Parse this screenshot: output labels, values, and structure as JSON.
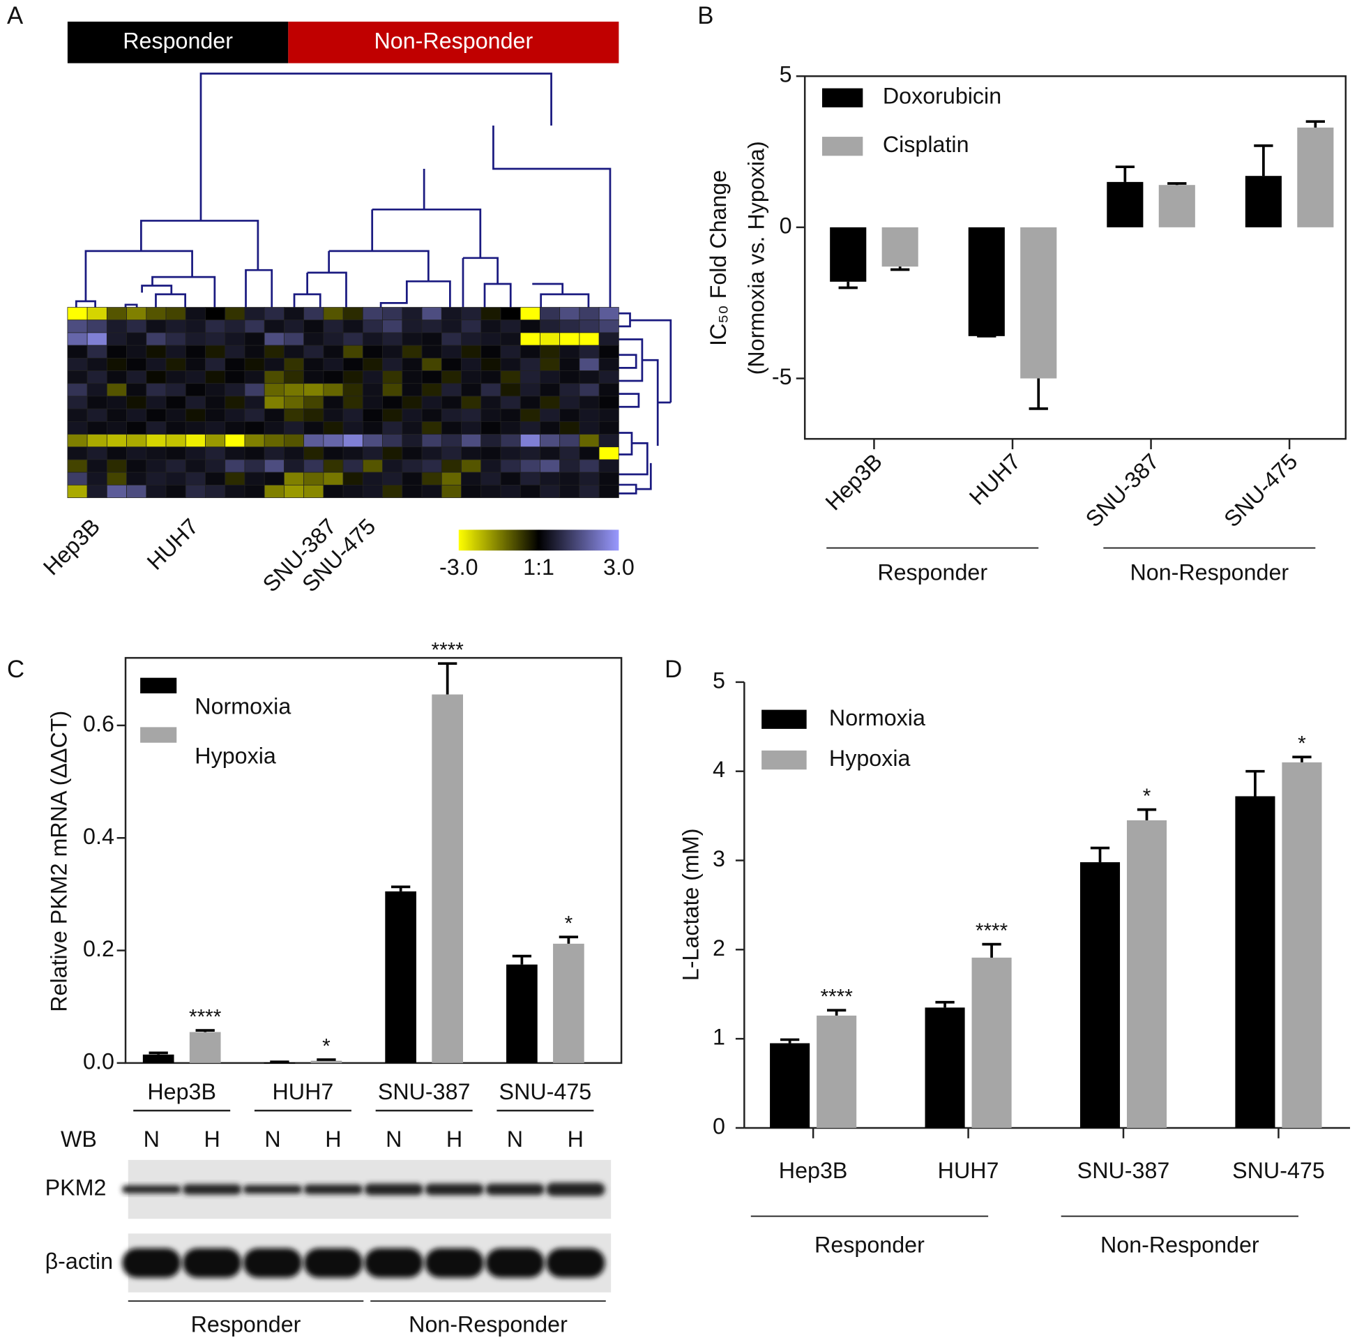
{
  "chart_data": [
    {
      "type": "heatmap",
      "panel": "A",
      "groups": [
        "Responder",
        "Non-Responder"
      ],
      "group_colors": [
        "#000000",
        "#c00000"
      ],
      "categories": [
        null,
        "Hep3B",
        null,
        null,
        null,
        null,
        "HUH7",
        null,
        null,
        null,
        null,
        null,
        null,
        "SNU-387",
        null,
        "SNU-475",
        null,
        null,
        null,
        null,
        null,
        null,
        null,
        null,
        null,
        null,
        null,
        null
      ],
      "values": [
        [
          -3,
          -2.5,
          -1,
          -1.5,
          -1,
          -0.8,
          0.3,
          0,
          -0.6,
          0.5,
          0.8,
          0.3,
          1,
          -1,
          -0.5,
          1.2,
          1,
          0.5,
          1.5,
          0.4,
          0.6,
          -0.3,
          0,
          -3,
          1,
          1.5,
          1.2,
          1.8
        ],
        [
          1.5,
          1.2,
          0.5,
          0.8,
          0.3,
          0.5,
          0.4,
          0.8,
          0.6,
          1,
          0.3,
          0.5,
          0.2,
          0.6,
          0.3,
          0.8,
          1.2,
          0.5,
          0.6,
          0.4,
          0.8,
          0.3,
          0.5,
          0.2,
          0.6,
          0.8,
          1,
          1.3
        ],
        [
          2,
          2.5,
          0.5,
          0.3,
          1.2,
          0.8,
          0.5,
          0.6,
          0.4,
          0.2,
          1.5,
          1.2,
          0.3,
          0.5,
          0.8,
          0.4,
          0.6,
          0.3,
          0.2,
          0.8,
          0.5,
          0.4,
          0.3,
          -3,
          -2.8,
          -3,
          -3,
          0.5
        ],
        [
          0.2,
          0.8,
          0.1,
          0.3,
          -0.2,
          0.4,
          0.1,
          -0.3,
          0.5,
          0.2,
          -0.4,
          0.3,
          0.6,
          0.2,
          -0.8,
          0.1,
          0.3,
          -0.5,
          0.2,
          0.4,
          -0.3,
          0.1,
          0.5,
          0.2,
          -0.4,
          0.3,
          0.6,
          0.1
        ],
        [
          0.5,
          0.3,
          -0.2,
          0.1,
          0.4,
          -0.3,
          0.2,
          0.6,
          0.1,
          -0.2,
          0.3,
          -0.6,
          0.2,
          0.4,
          0.1,
          -0.3,
          0.5,
          0.2,
          -0.8,
          0.1,
          0.4,
          -0.2,
          0.3,
          0.6,
          -0.5,
          0.2,
          1.5,
          0.3
        ],
        [
          0.3,
          0.6,
          0.2,
          0.5,
          -0.1,
          0.3,
          0.4,
          -0.2,
          0.1,
          0.3,
          -0.9,
          -0.5,
          0.2,
          0.1,
          -0.3,
          0.4,
          -0.6,
          0.2,
          0.1,
          -0.4,
          0.3,
          0.2,
          -0.5,
          0.6,
          0.4,
          0.2,
          0.3,
          0.5
        ],
        [
          1,
          0.4,
          -1,
          0.2,
          0.8,
          0.6,
          0.1,
          0.3,
          0.5,
          1.2,
          -1.2,
          -1.4,
          -1.5,
          -1.2,
          -0.5,
          0.3,
          -0.8,
          0.2,
          -0.4,
          0.6,
          0.2,
          0.8,
          -0.3,
          0.5,
          0.2,
          0.6,
          1,
          0.2
        ],
        [
          0.6,
          0.2,
          0.3,
          -0.2,
          0.4,
          0.1,
          0.5,
          0.2,
          -0.3,
          0.4,
          -1.5,
          -1.2,
          -0.8,
          0.2,
          -0.5,
          0.3,
          0.1,
          -0.3,
          0.4,
          0.2,
          -0.5,
          0.3,
          0.6,
          0.2,
          -0.4,
          0.5,
          0.3,
          0.1
        ],
        [
          0.3,
          0.5,
          0.2,
          0.4,
          0.1,
          0.3,
          -0.2,
          0.2,
          0.4,
          0.6,
          0.2,
          -0.6,
          -0.4,
          0.3,
          0.5,
          0.1,
          -0.3,
          0.4,
          0.2,
          0.5,
          0.6,
          0.3,
          0.2,
          -0.4,
          0.5,
          0.2,
          0.4,
          0.3
        ],
        [
          0.4,
          0.2,
          0.3,
          0.1,
          0.5,
          0.2,
          0.3,
          0.4,
          0.2,
          0.1,
          0.3,
          0.5,
          0.2,
          -0.3,
          0.4,
          0.2,
          0.6,
          0.3,
          -0.5,
          0.2,
          0.4,
          0.1,
          0.3,
          0.5,
          0.2,
          -0.3,
          0.4,
          0.2
        ],
        [
          -1.5,
          -2,
          -2.2,
          -2,
          -2.5,
          -2.3,
          -2.8,
          -1.8,
          -3,
          -1.5,
          -1.2,
          -1,
          1.8,
          2,
          2.5,
          1.5,
          1,
          0.5,
          1.2,
          0.8,
          1.5,
          0.6,
          1,
          2.5,
          1.5,
          1.2,
          -1.2,
          0.5
        ],
        [
          0.3,
          0.5,
          0.2,
          0.4,
          0.3,
          0.2,
          0.4,
          0.6,
          0.3,
          0.2,
          0.5,
          0.3,
          -0.4,
          0.2,
          0.3,
          0.5,
          -0.3,
          0.2,
          0.4,
          0.6,
          0.3,
          0.2,
          0.4,
          0.5,
          0.3,
          0.6,
          0.2,
          -3
        ],
        [
          -0.8,
          0.3,
          -0.5,
          0.2,
          0.4,
          0.6,
          0.3,
          0.5,
          1.2,
          0.8,
          1.5,
          0.5,
          1,
          -0.6,
          0.8,
          -1,
          0.4,
          0.6,
          0.8,
          -0.5,
          -1,
          0.4,
          0.8,
          1.2,
          1.5,
          0.6,
          1,
          0.4
        ],
        [
          1.2,
          0.4,
          -0.8,
          0.3,
          0.5,
          0.4,
          0.6,
          0.2,
          -0.5,
          0.3,
          0.2,
          -1.5,
          -1.2,
          -1.4,
          -0.3,
          0.4,
          0.5,
          0.2,
          -0.6,
          -1.2,
          0.3,
          0.5,
          0.2,
          0.6,
          0.4,
          0.3,
          0.5,
          0.2
        ],
        [
          -2,
          0.5,
          1.8,
          1.5,
          0.4,
          0.2,
          0.8,
          0.6,
          0.3,
          0.2,
          -1.5,
          -1.8,
          -1.6,
          0.2,
          0.3,
          0.4,
          -0.5,
          0.2,
          0.3,
          -1,
          0.2,
          0.3,
          0.4,
          0.2,
          0.5,
          0.3,
          0.6,
          0.2
        ]
      ],
      "clim": [
        -3,
        3
      ],
      "colors": [
        "#ffff00",
        "#000000",
        "#9999ff"
      ],
      "colorbar_ticks": [
        {
          "value": -3,
          "label": "-3.0"
        },
        {
          "value": 0,
          "label": "1:1"
        },
        {
          "value": 3,
          "label": "3.0"
        }
      ]
    },
    {
      "type": "bar",
      "panel": "B",
      "ylabel": [
        "IC₅₀ Fold Change",
        "(Normoxia vs. Hypoxia)"
      ],
      "categories": [
        "Hep3B",
        "HUH7",
        "SNU-387",
        "SNU-475"
      ],
      "series": [
        {
          "name": "Doxorubicin",
          "color": "#000000",
          "values": [
            -1.8,
            -3.6,
            1.5,
            1.7
          ],
          "errors": [
            0.2,
            0,
            0.5,
            1.0
          ]
        },
        {
          "name": "Cisplatin",
          "color": "#a6a6a6",
          "values": [
            -1.3,
            -5.0,
            1.4,
            3.3
          ],
          "errors": [
            0.1,
            1.0,
            0.05,
            0.2
          ]
        }
      ],
      "ylim": [
        -7,
        5
      ],
      "yticks": [
        -5,
        0,
        5
      ],
      "legend": "upper left",
      "group_labels": [
        "Responder",
        "Non-Responder"
      ]
    },
    {
      "type": "bar",
      "panel": "C",
      "ylabel": "Relative PKM2 mRNA (ΔΔCT)",
      "categories": [
        "Hep3B",
        "HUH7",
        "SNU-387",
        "SNU-475"
      ],
      "series": [
        {
          "name": "Normoxia",
          "color": "#000000",
          "values": [
            0.015,
            0.001,
            0.305,
            0.175
          ],
          "errors": [
            0.003,
            0.001,
            0.008,
            0.015
          ]
        },
        {
          "name": "Hypoxia",
          "color": "#a6a6a6",
          "values": [
            0.055,
            0.004,
            0.655,
            0.212
          ],
          "errors": [
            0.003,
            0.002,
            0.055,
            0.012
          ],
          "annotations": [
            "****",
            "*",
            "****",
            "*"
          ]
        }
      ],
      "ylim": [
        0,
        0.72
      ],
      "yticks": [
        {
          "value": 0,
          "label": "0.0"
        },
        0.2,
        0.4,
        0.6
      ],
      "legend": "upper left",
      "blot": {
        "label": "WB",
        "lanes": [
          "N",
          "H",
          "N",
          "H",
          "N",
          "H",
          "N",
          "H"
        ],
        "rows": [
          "PKM2",
          "β-actin"
        ]
      },
      "group_labels": [
        "Responder",
        "Non-Responder"
      ]
    },
    {
      "type": "bar",
      "panel": "D",
      "ylabel": "L-Lactate (mM)",
      "categories": [
        "Hep3B",
        "HUH7",
        "SNU-387",
        "SNU-475"
      ],
      "series": [
        {
          "name": "Normoxia",
          "color": "#000000",
          "values": [
            0.95,
            1.35,
            2.98,
            3.72
          ],
          "errors": [
            0.04,
            0.06,
            0.16,
            0.28
          ]
        },
        {
          "name": "Hypoxia",
          "color": "#a6a6a6",
          "values": [
            1.26,
            1.91,
            3.45,
            4.1
          ],
          "errors": [
            0.06,
            0.15,
            0.12,
            0.06
          ],
          "annotations": [
            "****",
            "****",
            "*",
            "*"
          ]
        }
      ],
      "ylim": [
        0,
        5
      ],
      "yticks": [
        0,
        1,
        2,
        3,
        4,
        5
      ],
      "legend": "upper left",
      "group_labels": [
        "Responder",
        "Non-Responder"
      ]
    }
  ]
}
